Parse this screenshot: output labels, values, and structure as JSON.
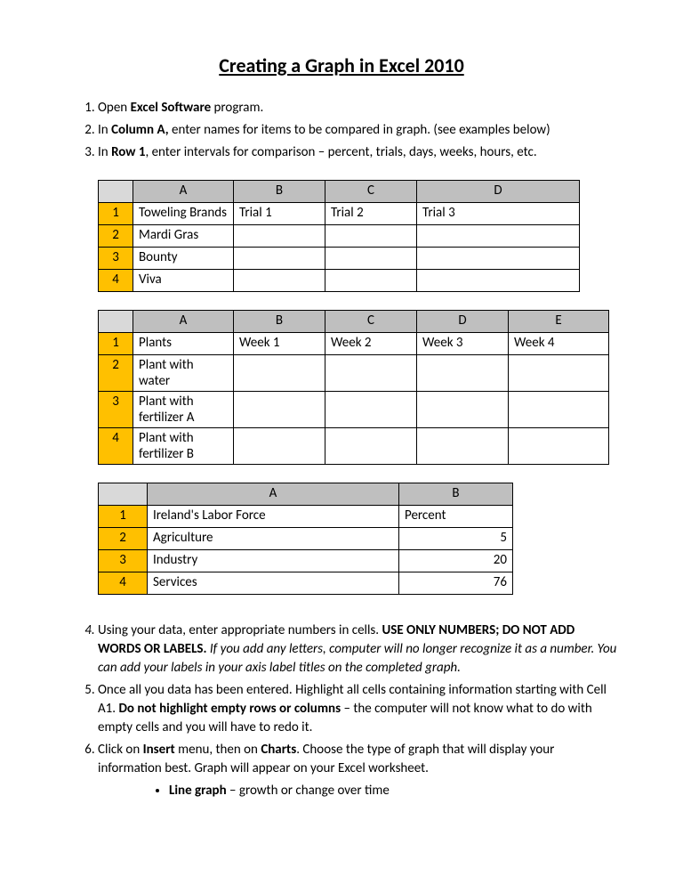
{
  "title": "Creating a Graph in Excel 2010",
  "step1": {
    "prefix": "Open ",
    "bold": "Excel Software",
    "suffix": " program."
  },
  "step2": {
    "prefix": "In ",
    "bold": "Column A,",
    "suffix": " enter names for items to be compared in graph. (see examples below)"
  },
  "step3": {
    "prefix": "In ",
    "bold": "Row 1",
    "suffix": ", enter intervals for comparison – percent, trials, days, weeks, hours, etc."
  },
  "table1": {
    "headers": [
      "A",
      "B",
      "C",
      "D"
    ],
    "rows": [
      {
        "n": "1",
        "cells": [
          "Toweling Brands",
          "Trial 1",
          "Trial 2",
          "Trial 3"
        ]
      },
      {
        "n": "2",
        "cells": [
          "Mardi Gras",
          "",
          "",
          ""
        ]
      },
      {
        "n": "3",
        "cells": [
          "Bounty",
          "",
          "",
          ""
        ]
      },
      {
        "n": "4",
        "cells": [
          "Viva",
          "",
          "",
          ""
        ]
      }
    ]
  },
  "table2": {
    "headers": [
      "A",
      "B",
      "C",
      "D",
      "E"
    ],
    "rows": [
      {
        "n": "1",
        "cells": [
          "Plants",
          "Week 1",
          "Week 2",
          "Week 3",
          "Week 4"
        ]
      },
      {
        "n": "2",
        "cells": [
          "Plant with water",
          "",
          "",
          "",
          ""
        ]
      },
      {
        "n": "3",
        "cells": [
          "Plant with fertilizer A",
          "",
          "",
          "",
          ""
        ]
      },
      {
        "n": "4",
        "cells": [
          "Plant with fertilizer B",
          "",
          "",
          "",
          ""
        ]
      }
    ]
  },
  "table3": {
    "headers": [
      "A",
      "B"
    ],
    "rows": [
      {
        "n": "1",
        "cells": [
          "Ireland's Labor Force",
          "Percent"
        ],
        "numrow": false
      },
      {
        "n": "2",
        "cells": [
          "Agriculture",
          "5"
        ],
        "numrow": true
      },
      {
        "n": "3",
        "cells": [
          "Industry",
          "20"
        ],
        "numrow": true
      },
      {
        "n": "4",
        "cells": [
          "Services",
          "76"
        ],
        "numrow": true
      }
    ]
  },
  "step4": {
    "p1": "Using your data, enter appropriate numbers in cells.  ",
    "b1": "USE ONLY NUMBERS; DO NOT ADD WORDS OR LABELS.",
    "i1": "  If you add any letters, computer will no longer recognize it as a number.  You can add your labels in your axis label titles on the completed graph."
  },
  "step5": {
    "p1": "Once all you data has been entered.  Highlight all cells containing information starting with Cell A1.  ",
    "b1": "Do not highlight empty rows or columns",
    "p2": " – the computer will not know what to do with empty cells and you will have to redo it."
  },
  "step6": {
    "p1": "Click on ",
    "b1": "Insert",
    "p2": " menu, then on ",
    "b2": "Charts",
    "p3": ".  Choose the type of graph that will display your information best.  Graph will appear on your Excel worksheet."
  },
  "bullet1": {
    "b": "Line graph",
    "rest": " – growth or change over time"
  }
}
